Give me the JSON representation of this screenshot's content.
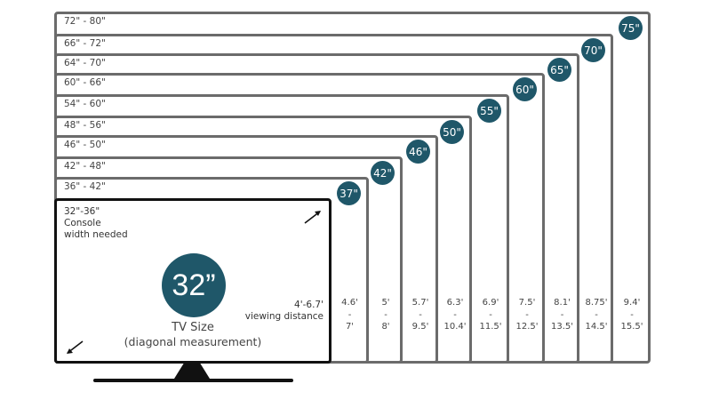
{
  "colors": {
    "badge": "#1f5769",
    "box_border": "#6b6b6b",
    "tv_border": "#111111"
  },
  "sizes": [
    {
      "size": "37\"",
      "range": "36\" - 42\"",
      "distance_from": "4.6'",
      "distance_to": "7'"
    },
    {
      "size": "42\"",
      "range": "42\" - 48\"",
      "distance_from": "5'",
      "distance_to": "8'"
    },
    {
      "size": "46\"",
      "range": "46\" - 50\"",
      "distance_from": "5.7'",
      "distance_to": "9.5'"
    },
    {
      "size": "50\"",
      "range": "48\" - 56\"",
      "distance_from": "6.3'",
      "distance_to": "10.4'"
    },
    {
      "size": "55\"",
      "range": "54\" - 60\"",
      "distance_from": "6.9'",
      "distance_to": "11.5'"
    },
    {
      "size": "60\"",
      "range": "60\" - 66\"",
      "distance_from": "7.5'",
      "distance_to": "12.5'"
    },
    {
      "size": "65\"",
      "range": "64\" - 70\"",
      "distance_from": "8.1'",
      "distance_to": "13.5'"
    },
    {
      "size": "70\"",
      "range": "66\" - 72\"",
      "distance_from": "8.75'",
      "distance_to": "14.5'"
    },
    {
      "size": "75\"",
      "range": "72\" - 80\"",
      "distance_from": "9.4'",
      "distance_to": "15.5'"
    }
  ],
  "separator": "-",
  "tv": {
    "size": "32”",
    "range": "32\"-36\"",
    "console_line1": "Console",
    "console_line2": "width needed",
    "label": "TV Size",
    "sublabel": "(diagonal measurement)",
    "distance": "4'-6.7'",
    "distance_label": "viewing distance"
  }
}
